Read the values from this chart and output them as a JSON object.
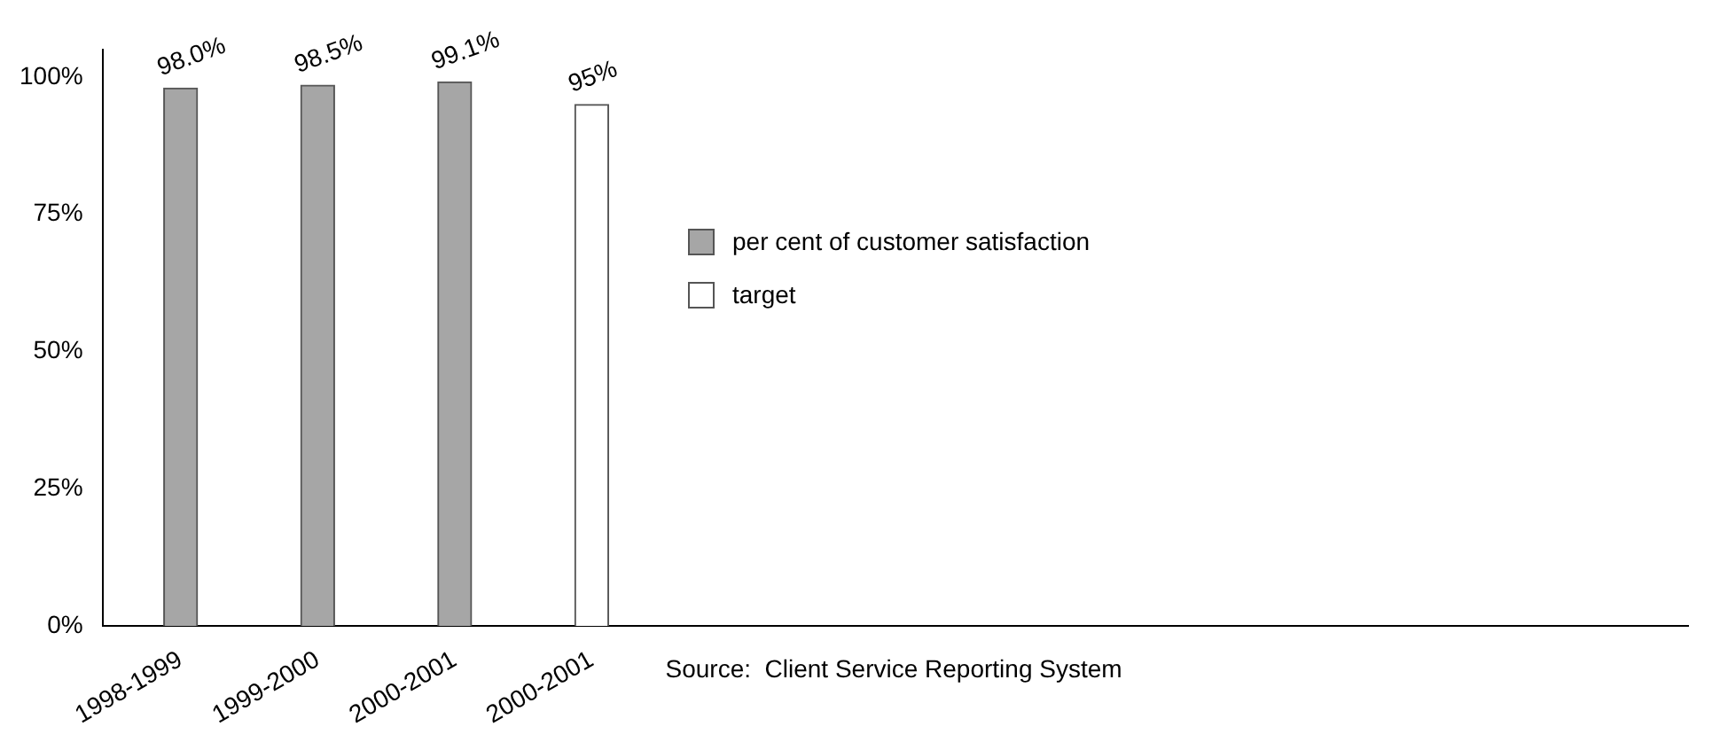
{
  "chart_data": {
    "type": "bar",
    "categories": [
      "1998-1999",
      "1999-2000",
      "2000-2001",
      "2000-2001"
    ],
    "series": [
      {
        "name": "per cent of customer satisfaction",
        "color": "#a6a6a6",
        "values": [
          98.0,
          98.5,
          99.1,
          null
        ],
        "value_labels": [
          "98.0%",
          "98.5%",
          "99.1%",
          null
        ]
      },
      {
        "name": "target",
        "color": "#ffffff",
        "values": [
          null,
          null,
          null,
          95
        ],
        "value_labels": [
          null,
          null,
          null,
          "95%"
        ]
      }
    ],
    "ylim": [
      0,
      105
    ],
    "yticks": [
      {
        "value": 0,
        "label": "0%"
      },
      {
        "value": 25,
        "label": "25%"
      },
      {
        "value": 50,
        "label": "50%"
      },
      {
        "value": 75,
        "label": "75%"
      },
      {
        "value": 100,
        "label": "100%"
      }
    ],
    "grid": false,
    "legend": "top",
    "annotations": [
      "Source:  Client Service Reporting System"
    ]
  }
}
